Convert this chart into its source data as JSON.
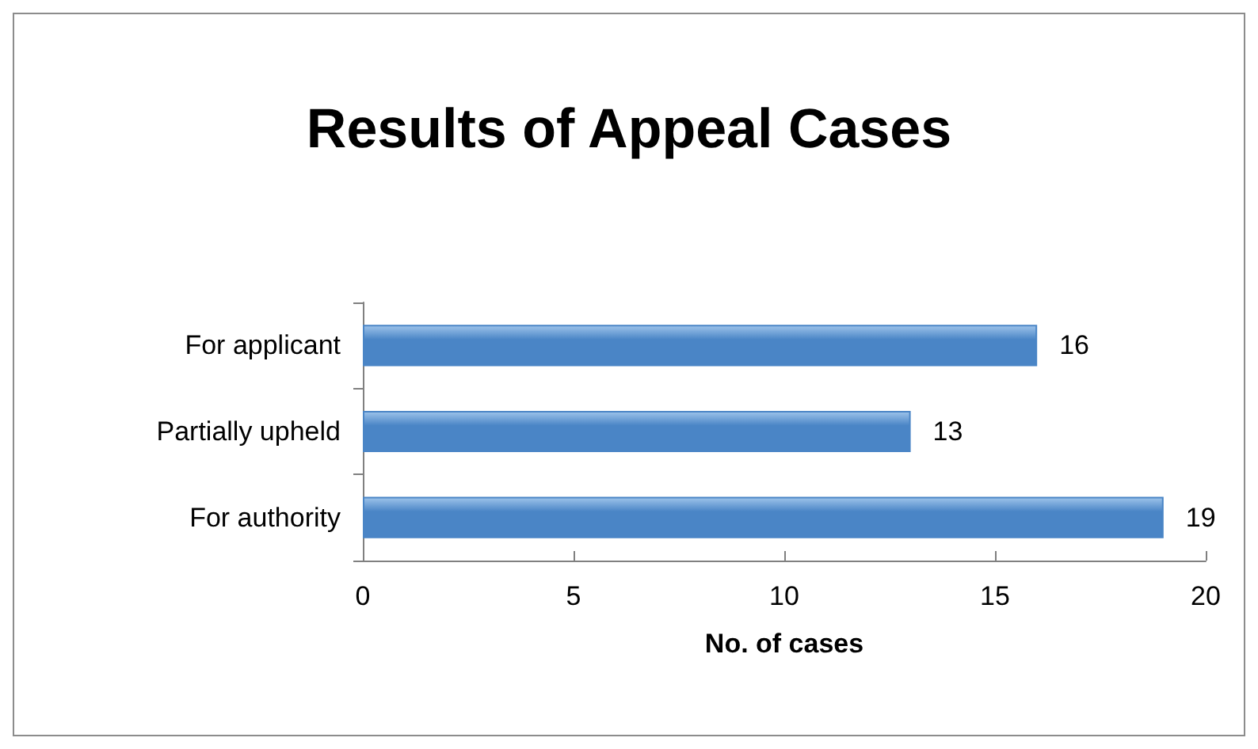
{
  "chart_data": {
    "type": "bar",
    "orientation": "horizontal",
    "title": "Results of Appeal Cases",
    "xlabel": "No. of cases",
    "categories": [
      "For applicant",
      "Partially upheld",
      "For authority"
    ],
    "values": [
      16,
      13,
      19
    ],
    "color": "#4a85c6",
    "xlim": [
      0,
      20
    ],
    "xticks": [
      0,
      5,
      10,
      15,
      20
    ],
    "data_labels": true,
    "grid": false
  }
}
